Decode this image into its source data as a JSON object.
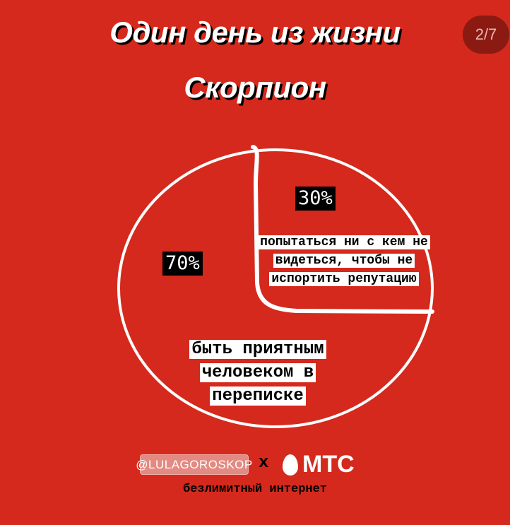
{
  "header": {
    "title_line1": "Один день из жизни",
    "title_line2": "Скорпион",
    "counter": "2/7"
  },
  "chart_data": {
    "type": "pie",
    "slices": [
      {
        "label": "быть приятным человеком в переписке",
        "value": 70,
        "value_label": "70%"
      },
      {
        "label": "попытаться ни с кем не видеться, чтобы не испортить репутацию",
        "value": 30,
        "value_label": "30%"
      }
    ]
  },
  "footer": {
    "handle": "@LULAGOROSKOP",
    "times": "x",
    "brand": "МТС",
    "tagline": "безлимитный интернет"
  },
  "colors": {
    "background": "#d5291d",
    "line": "#ffffff"
  }
}
